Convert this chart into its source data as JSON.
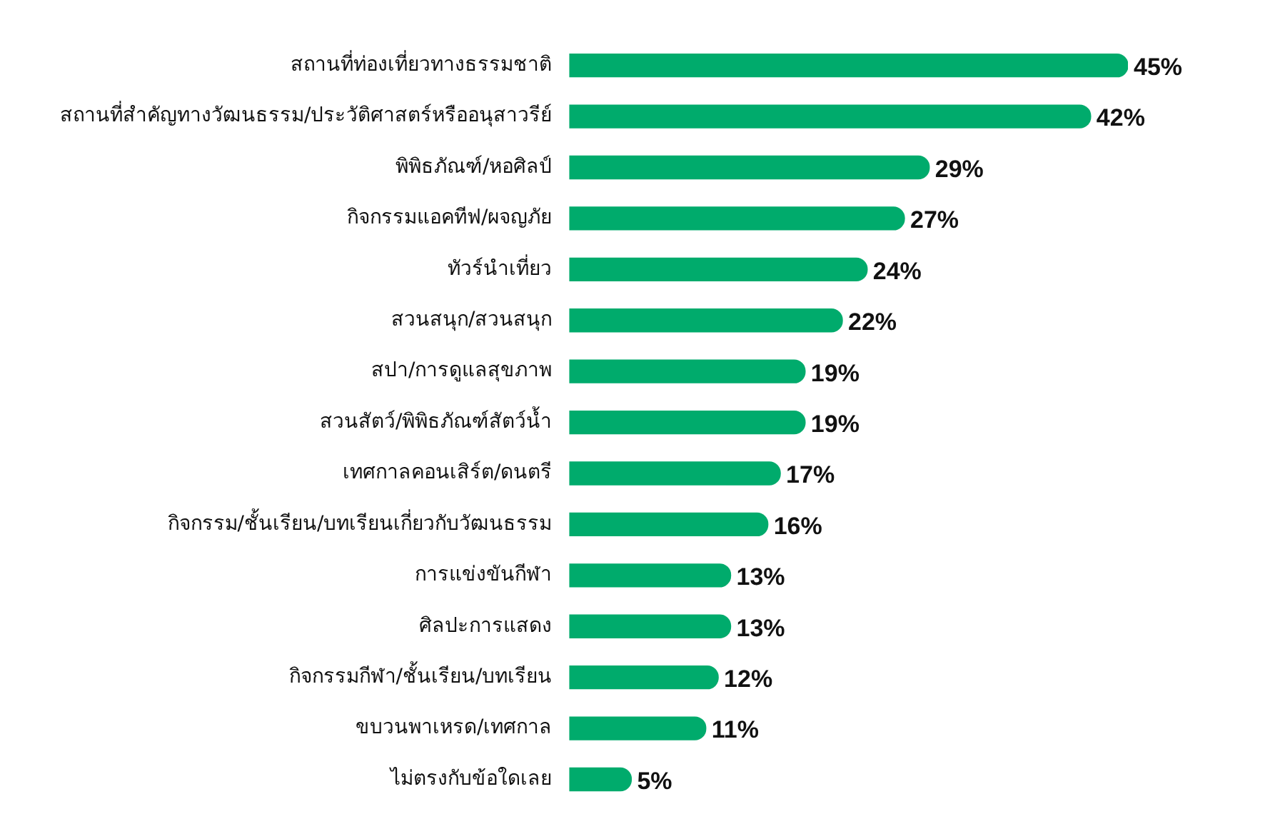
{
  "chart_data": {
    "type": "bar",
    "orientation": "horizontal",
    "categories": [
      "สถานที่ท่องเที่ยวทางธรรมชาติ",
      "สถานที่สำคัญทางวัฒนธรรม/ประวัติศาสตร์หรืออนุสาวรีย์",
      "พิพิธภัณฑ์/หอศิลป์",
      "กิจกรรมแอคทีฟ/ผจญภัย",
      "ทัวร์นำเที่ยว",
      "สวนสนุก/สวนสนุก",
      "สปา/การดูแลสุขภาพ",
      "สวนสัตว์/พิพิธภัณฑ์สัตว์น้ำ",
      "เทศกาลคอนเสิร์ต/ดนตรี",
      "กิจกรรม/ชั้นเรียน/บทเรียนเกี่ยวกับวัฒนธรรม",
      "การแข่งขันกีฬา",
      "ศิลปะการแสดง",
      "กิจกรรมกีฬา/ชั้นเรียน/บทเรียน",
      "ขบวนพาเหรด/เทศกาล",
      "ไม่ตรงกับข้อใดเลย"
    ],
    "values": [
      45,
      42,
      29,
      27,
      24,
      22,
      19,
      19,
      17,
      16,
      13,
      13,
      12,
      11,
      5
    ],
    "value_labels": [
      "45%",
      "42%",
      "29%",
      "27%",
      "24%",
      "22%",
      "19%",
      "19%",
      "17%",
      "16%",
      "13%",
      "13%",
      "12%",
      "11%",
      "5%"
    ],
    "color": "#00ab6c",
    "legend": false,
    "tick_labels": "y"
  }
}
